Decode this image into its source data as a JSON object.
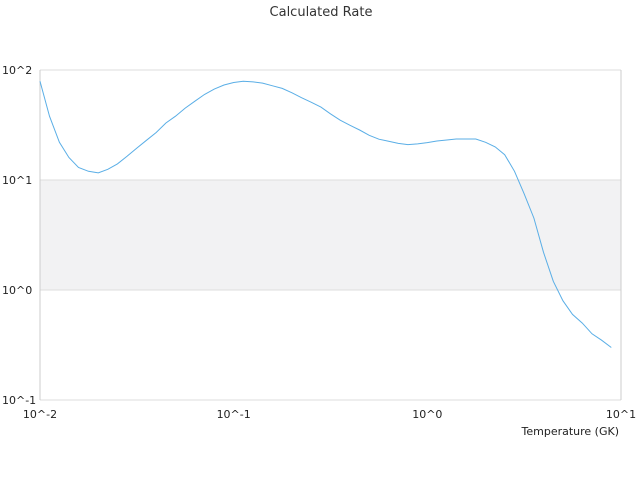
{
  "chart_data": {
    "type": "line",
    "title": "Calculated Rate",
    "xlabel": "Temperature (GK)",
    "ylabel": "",
    "x_scale": "log",
    "y_scale": "log",
    "xlim": [
      0.01,
      10
    ],
    "ylim": [
      0.1,
      100
    ],
    "x_tick_labels": [
      "10^-2",
      "10^-1",
      "10^0",
      "10^1"
    ],
    "x_tick_values": [
      0.01,
      0.1,
      1,
      10
    ],
    "y_tick_labels": [
      "10^-1",
      "10^0",
      "10^1",
      "10^2"
    ],
    "y_tick_values": [
      0.1,
      1,
      10,
      100
    ],
    "shaded_band": {
      "from": 1,
      "to": 10,
      "color": "#f2f2f3"
    },
    "grid": "horizontal",
    "legend": "none",
    "colors": {
      "line": "#5aaee6",
      "grid": "#dddddd",
      "axis": "#cccccc"
    },
    "series": [
      {
        "x": [
          0.01,
          0.0112,
          0.0126,
          0.0141,
          0.0158,
          0.0178,
          0.02,
          0.0224,
          0.0251,
          0.0282,
          0.0316,
          0.0355,
          0.0398,
          0.0447,
          0.0501,
          0.0562,
          0.0631,
          0.0708,
          0.0794,
          0.0891,
          0.1,
          0.112,
          0.126,
          0.141,
          0.158,
          0.178,
          0.2,
          0.224,
          0.251,
          0.282,
          0.316,
          0.355,
          0.398,
          0.447,
          0.501,
          0.562,
          0.631,
          0.708,
          0.794,
          0.891,
          1.0,
          1.12,
          1.26,
          1.41,
          1.58,
          1.78,
          2.0,
          2.24,
          2.51,
          2.82,
          3.16,
          3.55,
          3.98,
          4.47,
          5.01,
          5.62,
          6.31,
          7.08,
          7.94,
          8.91
        ],
        "y": [
          79,
          38,
          22,
          16,
          13,
          12,
          11.6,
          12.5,
          14,
          16.5,
          19.5,
          23,
          27,
          33,
          38,
          45,
          52,
          60,
          67,
          73,
          77,
          79,
          78,
          76,
          72,
          68,
          62,
          56,
          51,
          46,
          40,
          35,
          31.5,
          28.5,
          25.5,
          23.5,
          22.5,
          21.5,
          21,
          21.3,
          21.9,
          22.6,
          23.1,
          23.6,
          23.6,
          23.6,
          22,
          20,
          17,
          12,
          7.5,
          4.5,
          2.2,
          1.2,
          0.8,
          0.6,
          0.5,
          0.4,
          0.35,
          0.3
        ]
      }
    ]
  }
}
